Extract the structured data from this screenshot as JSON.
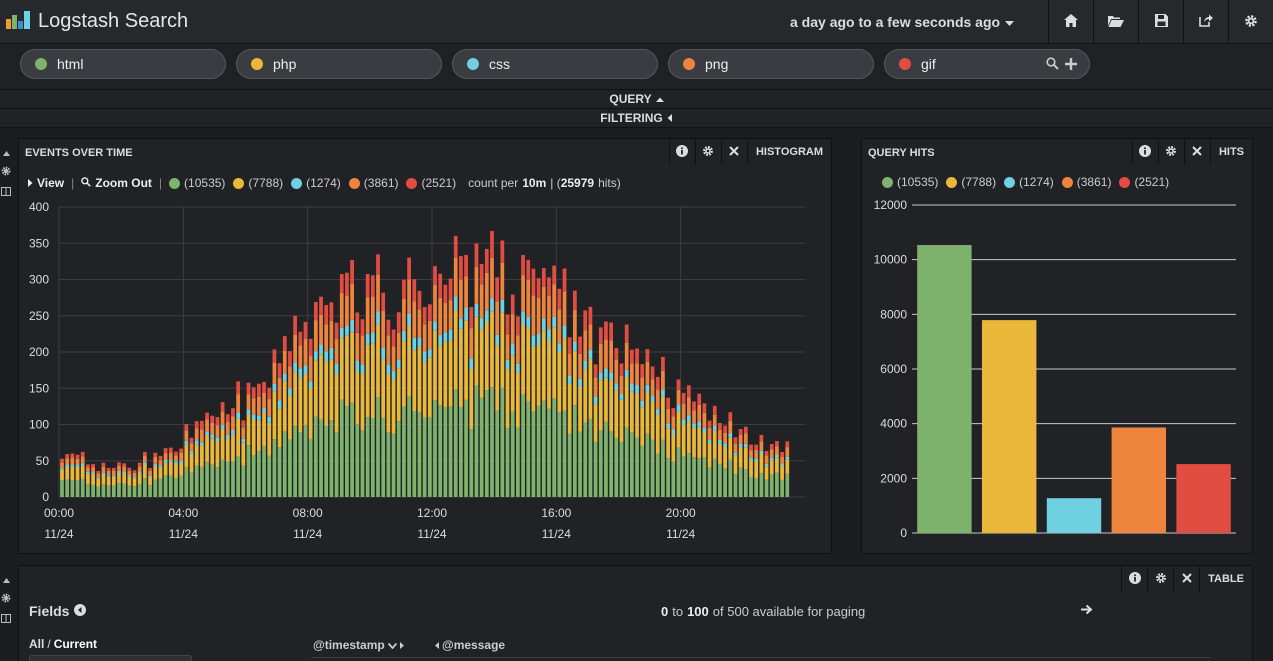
{
  "app": {
    "title": "Logstash Search"
  },
  "timerange": {
    "label": "a day ago to a few seconds ago"
  },
  "toolbar_icons": [
    "home-icon",
    "folder-open-icon",
    "save-icon",
    "share-icon",
    "gear-icon"
  ],
  "queries": [
    {
      "label": "html",
      "color": "#7eb26d"
    },
    {
      "label": "php",
      "color": "#eab839"
    },
    {
      "label": "css",
      "color": "#6ed0e0"
    },
    {
      "label": "png",
      "color": "#ef843c"
    },
    {
      "label": "gif",
      "color": "#e24d42"
    }
  ],
  "strips": {
    "query": "QUERY",
    "filtering": "FILTERING"
  },
  "histogram": {
    "title": "EVENTS OVER TIME",
    "type_label": "HISTOGRAM",
    "view_label": "View",
    "zoom_out_label": "Zoom Out",
    "counts": [
      "(10535)",
      "(7788)",
      "(1274)",
      "(3861)",
      "(2521)"
    ],
    "count_per_prefix": "count per",
    "interval": "10m",
    "total": "25979",
    "hits_suffix": "hits)",
    "total_prefix": "| ("
  },
  "hits_panel": {
    "title": "QUERY HITS",
    "type_label": "HITS",
    "counts": [
      "(10535)",
      "(7788)",
      "(1274)",
      "(3861)",
      "(2521)"
    ]
  },
  "table_panel": {
    "type_label": "TABLE",
    "fields_label": "Fields",
    "all_label": "All",
    "sep": "/",
    "current_label": "Current",
    "paging_from": "0",
    "paging_to_word": "to",
    "paging_to": "100",
    "paging_suffix": "of 500 available for paging",
    "col_timestamp": "@timestamp",
    "col_message": "@message"
  },
  "chart_data": [
    {
      "type": "bar",
      "stacked": true,
      "title": "EVENTS OVER TIME",
      "x_ticks": [
        {
          "time": "00:00",
          "date": "11/24"
        },
        {
          "time": "04:00",
          "date": "11/24"
        },
        {
          "time": "08:00",
          "date": "11/24"
        },
        {
          "time": "12:00",
          "date": "11/24"
        },
        {
          "time": "16:00",
          "date": "11/24"
        },
        {
          "time": "20:00",
          "date": "11/24"
        }
      ],
      "y_ticks": [
        0,
        50,
        100,
        150,
        200,
        250,
        300,
        350,
        400
      ],
      "ylim": [
        0,
        400
      ],
      "xlim_hours": [
        0,
        24
      ],
      "bar_interval_minutes": 10,
      "grid": true,
      "series_colors": [
        "#7eb26d",
        "#eab839",
        "#6ed0e0",
        "#ef843c",
        "#e24d42"
      ],
      "total_profile_hours": [
        0,
        1,
        2,
        3,
        4,
        5,
        6,
        7,
        8,
        9,
        10,
        11,
        12,
        13,
        14,
        15,
        16,
        17,
        18,
        19,
        20,
        21,
        22,
        23,
        24
      ],
      "total_profile_values": [
        62,
        45,
        40,
        55,
        80,
        115,
        150,
        200,
        240,
        270,
        275,
        285,
        305,
        300,
        320,
        290,
        270,
        245,
        210,
        175,
        140,
        115,
        95,
        68,
        72
      ],
      "series_shares": [
        0.405,
        0.3,
        0.05,
        0.148,
        0.097
      ]
    },
    {
      "type": "bar",
      "title": "QUERY HITS",
      "categories": [
        "html",
        "php",
        "css",
        "png",
        "gif"
      ],
      "values": [
        10535,
        7788,
        1274,
        3861,
        2521
      ],
      "colors": [
        "#7eb26d",
        "#eab839",
        "#6ed0e0",
        "#ef843c",
        "#e24d42"
      ],
      "y_ticks": [
        0,
        2000,
        4000,
        6000,
        8000,
        10000,
        12000
      ],
      "ylim": [
        0,
        12000
      ],
      "grid": true
    }
  ]
}
